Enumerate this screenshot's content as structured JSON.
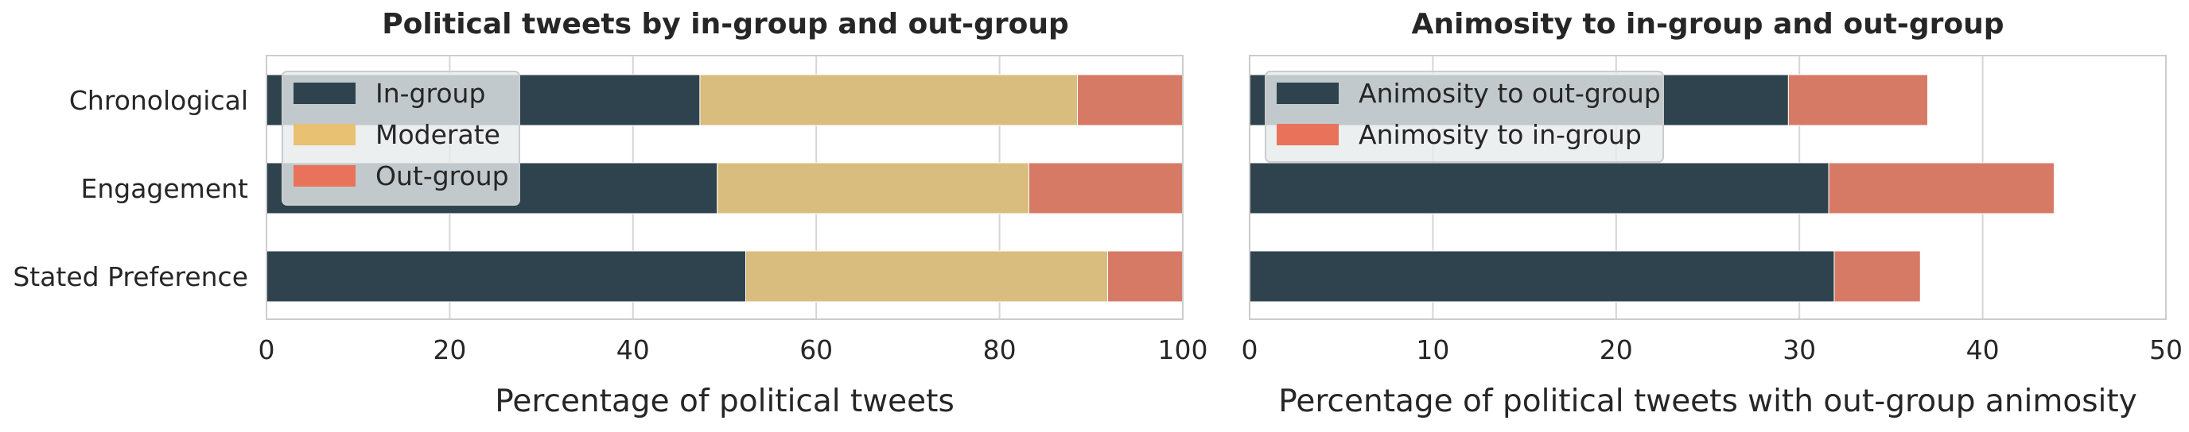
{
  "chart_data": [
    {
      "type": "bar",
      "orientation": "horizontal",
      "stacked": true,
      "title": "Political tweets by in-group and out-group",
      "xlabel": "Percentage of political tweets",
      "ylabel": "",
      "categories": [
        "Chronological",
        "Engagement",
        "Stated Preference"
      ],
      "series": [
        {
          "name": "In-group",
          "color": "#2e434d",
          "values": [
            47.3,
            49.2,
            52.3
          ]
        },
        {
          "name": "Moderate",
          "color": "#d9bd7e",
          "values": [
            41.2,
            34.0,
            39.5
          ]
        },
        {
          "name": "Out-group",
          "color": "#d67a66",
          "values": [
            11.5,
            16.8,
            8.2
          ]
        }
      ],
      "xlim": [
        0,
        100
      ],
      "xticks": [
        "0",
        "20",
        "40",
        "60",
        "80",
        "100"
      ],
      "legend_swatch_colors": [
        "#2e434d",
        "#e8c173",
        "#e8735a"
      ],
      "grid": true,
      "legend": "top-left"
    },
    {
      "type": "bar",
      "orientation": "horizontal",
      "stacked": true,
      "title": "Animosity to in-group and out-group",
      "xlabel": "Percentage of political tweets with out-group animosity",
      "ylabel": "",
      "categories": [
        "Chronological",
        "Engagement",
        "Stated Preference"
      ],
      "series": [
        {
          "name": "Animosity to out-group",
          "color": "#2e434d",
          "values": [
            29.4,
            31.6,
            31.9
          ]
        },
        {
          "name": "Animosity to in-group",
          "color": "#d67a66",
          "values": [
            7.6,
            12.3,
            4.7
          ]
        }
      ],
      "xlim": [
        0,
        50
      ],
      "xticks": [
        "0",
        "10",
        "20",
        "30",
        "40",
        "50"
      ],
      "legend_swatch_colors": [
        "#2e434d",
        "#e8735a"
      ],
      "grid": true,
      "legend": "top-left"
    }
  ]
}
